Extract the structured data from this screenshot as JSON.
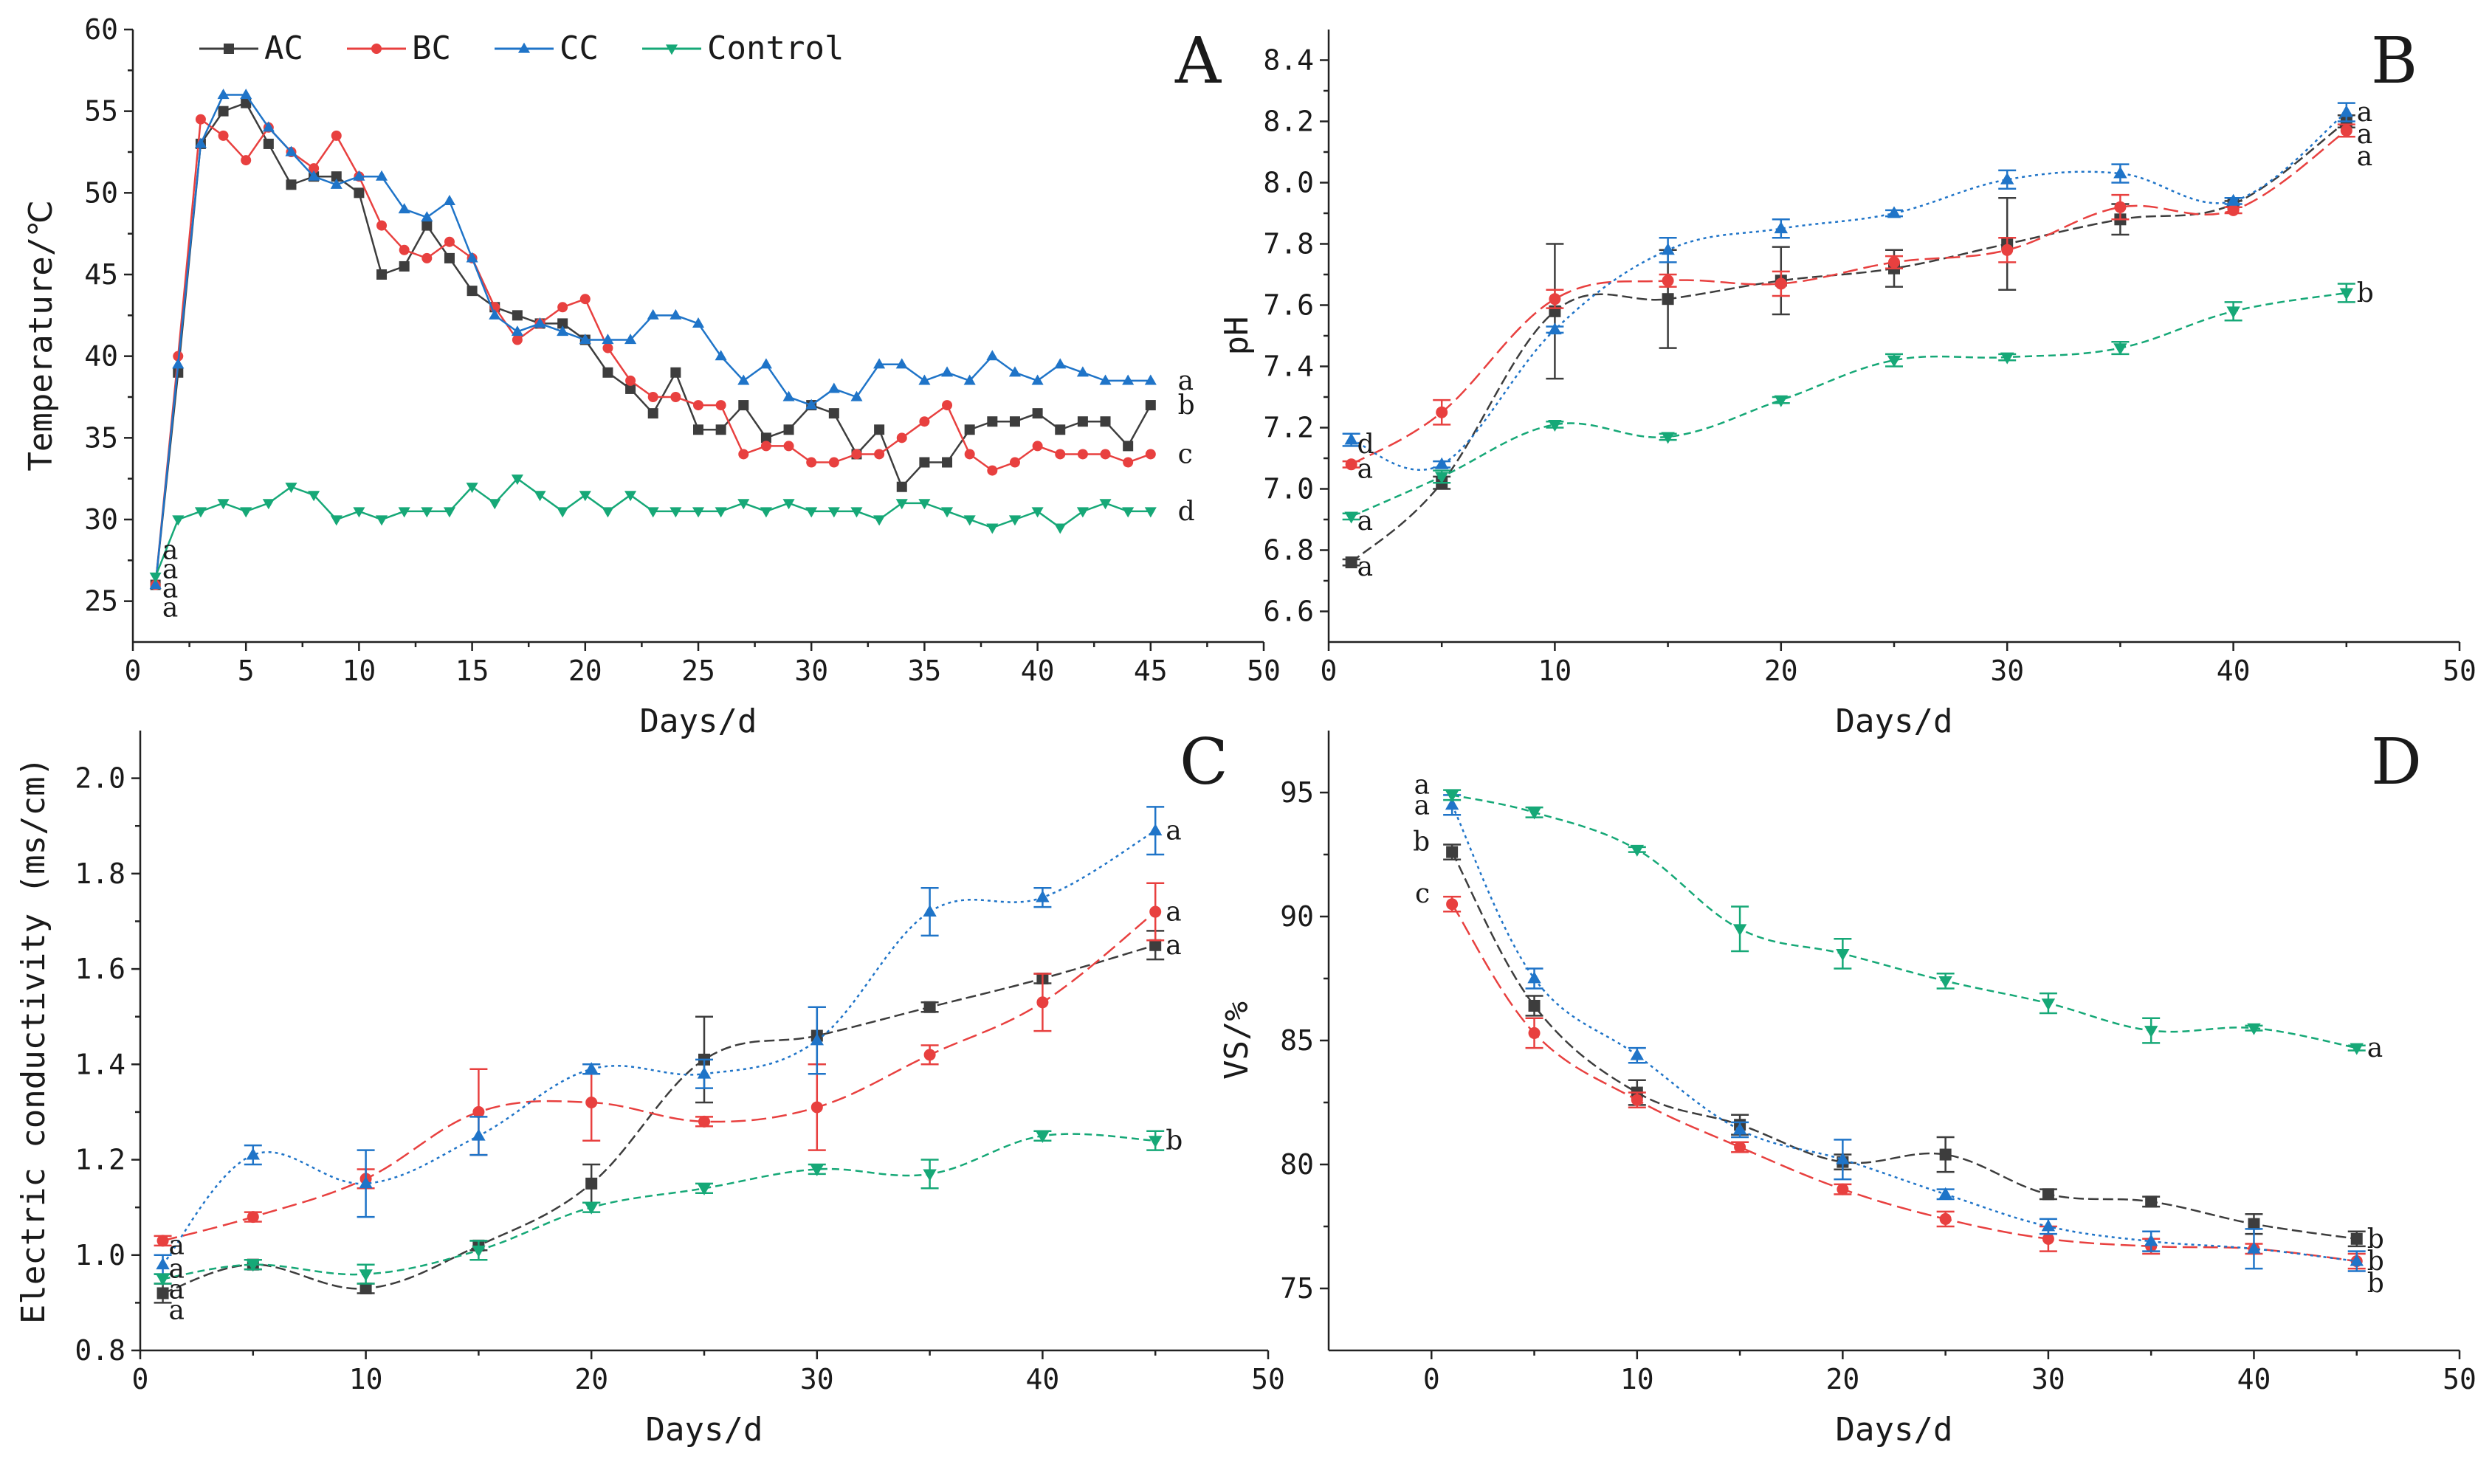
{
  "legend": [
    {
      "name": "AC",
      "color": "#3d3d3d",
      "marker": "square"
    },
    {
      "name": "BC",
      "color": "#e8403f",
      "marker": "circle"
    },
    {
      "name": "CC",
      "color": "#1f74c8",
      "marker": "triangle-up"
    },
    {
      "name": "Control",
      "color": "#16a877",
      "marker": "triangle-down"
    }
  ],
  "chart_data": [
    {
      "panel": "A",
      "type": "line",
      "xlabel": "Days/d",
      "ylabel": "Temperature/℃",
      "xlim": [
        0,
        50
      ],
      "ylim": [
        22.5,
        60
      ],
      "xticks": [
        0,
        5,
        10,
        15,
        20,
        25,
        30,
        35,
        40,
        45,
        50
      ],
      "yticks": [
        25,
        30,
        35,
        40,
        45,
        50,
        55,
        60
      ],
      "series": [
        {
          "name": "AC",
          "x": [
            1,
            2,
            3,
            4,
            5,
            6,
            7,
            8,
            9,
            10,
            11,
            12,
            13,
            14,
            15,
            16,
            17,
            18,
            19,
            20,
            21,
            22,
            23,
            24,
            25,
            26,
            27,
            28,
            29,
            30,
            31,
            32,
            33,
            34,
            35,
            36,
            37,
            38,
            39,
            40,
            41,
            42,
            43,
            44,
            45
          ],
          "values": [
            26,
            39,
            53,
            55,
            55.5,
            53,
            50.5,
            51,
            51,
            50,
            45,
            45.5,
            48,
            46,
            44,
            43,
            42.5,
            42,
            42,
            41,
            39,
            38,
            36.5,
            39,
            35.5,
            35.5,
            37,
            35,
            35.5,
            37,
            36.5,
            34,
            35.5,
            32,
            33.5,
            33.5,
            35.5,
            36,
            36,
            36.5,
            35.5,
            36,
            36,
            34.5,
            37
          ],
          "sig": "b"
        },
        {
          "name": "BC",
          "x": [
            1,
            2,
            3,
            4,
            5,
            6,
            7,
            8,
            9,
            10,
            11,
            12,
            13,
            14,
            15,
            16,
            17,
            18,
            19,
            20,
            21,
            22,
            23,
            24,
            25,
            26,
            27,
            28,
            29,
            30,
            31,
            32,
            33,
            34,
            35,
            36,
            37,
            38,
            39,
            40,
            41,
            42,
            43,
            44,
            45
          ],
          "values": [
            26,
            40,
            54.5,
            53.5,
            52,
            54,
            52.5,
            51.5,
            53.5,
            51,
            48,
            46.5,
            46,
            47,
            46,
            43,
            41,
            42,
            43,
            43.5,
            40.5,
            38.5,
            37.5,
            37.5,
            37,
            37,
            34,
            34.5,
            34.5,
            33.5,
            33.5,
            34,
            34,
            35,
            36,
            37,
            34,
            33,
            33.5,
            34.5,
            34,
            34,
            34,
            33.5,
            34
          ],
          "sig": "c"
        },
        {
          "name": "CC",
          "x": [
            1,
            2,
            3,
            4,
            5,
            6,
            7,
            8,
            9,
            10,
            11,
            12,
            13,
            14,
            15,
            16,
            17,
            18,
            19,
            20,
            21,
            22,
            23,
            24,
            25,
            26,
            27,
            28,
            29,
            30,
            31,
            32,
            33,
            34,
            35,
            36,
            37,
            38,
            39,
            40,
            41,
            42,
            43,
            44,
            45
          ],
          "values": [
            26,
            39.5,
            53,
            56,
            56,
            54,
            52.5,
            51,
            50.5,
            51,
            51,
            49,
            48.5,
            49.5,
            46,
            42.5,
            41.5,
            42,
            41.5,
            41,
            41,
            41,
            42.5,
            42.5,
            42,
            40,
            38.5,
            39.5,
            37.5,
            37,
            38,
            37.5,
            39.5,
            39.5,
            38.5,
            39,
            38.5,
            40,
            39,
            38.5,
            39.5,
            39,
            38.5,
            38.5,
            38.5
          ],
          "sig": "a"
        },
        {
          "name": "Control",
          "x": [
            1,
            2,
            3,
            4,
            5,
            6,
            7,
            8,
            9,
            10,
            11,
            12,
            13,
            14,
            15,
            16,
            17,
            18,
            19,
            20,
            21,
            22,
            23,
            24,
            25,
            26,
            27,
            28,
            29,
            30,
            31,
            32,
            33,
            34,
            35,
            36,
            37,
            38,
            39,
            40,
            41,
            42,
            43,
            44,
            45
          ],
          "values": [
            26.5,
            30,
            30.5,
            31,
            30.5,
            31,
            32,
            31.5,
            30,
            30.5,
            30,
            30.5,
            30.5,
            30.5,
            32,
            31,
            32.5,
            31.5,
            30.5,
            31.5,
            30.5,
            31.5,
            30.5,
            30.5,
            30.5,
            30.5,
            31,
            30.5,
            31,
            30.5,
            30.5,
            30.5,
            30,
            31,
            31,
            30.5,
            30,
            29.5,
            30,
            30.5,
            29.5,
            30.5,
            31,
            30.5,
            30.5
          ],
          "sig": "d"
        }
      ],
      "start_sig": [
        "a",
        "a",
        "a",
        "a"
      ]
    },
    {
      "panel": "B",
      "type": "line",
      "xlabel": "Days/d",
      "ylabel": "pH",
      "xlim": [
        0,
        50
      ],
      "ylim": [
        6.5,
        8.5
      ],
      "xticks": [
        0,
        10,
        20,
        30,
        40,
        50
      ],
      "yticks": [
        6.6,
        6.8,
        7.0,
        7.2,
        7.4,
        7.6,
        7.8,
        8.0,
        8.2,
        8.4
      ],
      "series": [
        {
          "name": "AC",
          "x": [
            1,
            5,
            10,
            15,
            20,
            25,
            30,
            35,
            40,
            45
          ],
          "values": [
            6.76,
            7.02,
            7.58,
            7.62,
            7.68,
            7.72,
            7.8,
            7.88,
            7.93,
            8.2
          ],
          "err": [
            0.01,
            0.02,
            0.22,
            0.16,
            0.11,
            0.06,
            0.15,
            0.05,
            0.01,
            0.02
          ],
          "start_sig": "a",
          "end_sig": "a"
        },
        {
          "name": "BC",
          "x": [
            1,
            5,
            10,
            15,
            20,
            25,
            30,
            35,
            40,
            45
          ],
          "values": [
            7.08,
            7.25,
            7.62,
            7.68,
            7.67,
            7.74,
            7.78,
            7.92,
            7.91,
            8.17
          ],
          "err": [
            0.01,
            0.04,
            0.03,
            0.02,
            0.04,
            0.02,
            0.04,
            0.04,
            0.01,
            0.02
          ],
          "start_sig": "a",
          "end_sig": "a"
        },
        {
          "name": "CC",
          "x": [
            1,
            5,
            10,
            15,
            20,
            25,
            30,
            35,
            40,
            45
          ],
          "values": [
            7.16,
            7.08,
            7.52,
            7.78,
            7.85,
            7.9,
            8.01,
            8.03,
            7.94,
            8.23
          ],
          "err": [
            0.02,
            0.01,
            0.01,
            0.04,
            0.03,
            0.01,
            0.03,
            0.03,
            0.01,
            0.03
          ],
          "start_sig": "d",
          "end_sig": "a"
        },
        {
          "name": "Control",
          "x": [
            1,
            5,
            10,
            15,
            20,
            25,
            30,
            35,
            40,
            45
          ],
          "values": [
            6.91,
            7.04,
            7.21,
            7.17,
            7.29,
            7.42,
            7.43,
            7.46,
            7.58,
            7.64
          ],
          "err": [
            0.01,
            0.02,
            0.01,
            0.01,
            0.01,
            0.02,
            0.01,
            0.02,
            0.03,
            0.03
          ],
          "start_sig": "a",
          "end_sig": "b"
        }
      ]
    },
    {
      "panel": "C",
      "type": "line",
      "xlabel": "Days/d",
      "ylabel": "Electric conductivity (ms/cm)",
      "xlim": [
        0,
        50
      ],
      "ylim": [
        0.8,
        2.1
      ],
      "xticks": [
        0,
        10,
        20,
        30,
        40,
        50
      ],
      "yticks": [
        0.8,
        1.0,
        1.2,
        1.4,
        1.6,
        1.8,
        2.0
      ],
      "series": [
        {
          "name": "AC",
          "x": [
            1,
            5,
            10,
            15,
            20,
            25,
            30,
            35,
            40,
            45
          ],
          "values": [
            0.92,
            0.98,
            0.93,
            1.02,
            1.15,
            1.41,
            1.46,
            1.52,
            1.58,
            1.65
          ],
          "err": [
            0.02,
            0.01,
            0.01,
            0.01,
            0.04,
            0.09,
            0.06,
            0.01,
            0.01,
            0.03
          ],
          "start_sig": "a",
          "end_sig": "a"
        },
        {
          "name": "BC",
          "x": [
            1,
            5,
            10,
            15,
            20,
            25,
            30,
            35,
            40,
            45
          ],
          "values": [
            1.03,
            1.08,
            1.16,
            1.3,
            1.32,
            1.28,
            1.31,
            1.42,
            1.53,
            1.72
          ],
          "err": [
            0.01,
            0.01,
            0.02,
            0.09,
            0.08,
            0.01,
            0.09,
            0.02,
            0.06,
            0.06
          ],
          "start_sig": "a",
          "end_sig": "a"
        },
        {
          "name": "CC",
          "x": [
            1,
            5,
            10,
            15,
            20,
            25,
            30,
            35,
            40,
            45
          ],
          "values": [
            0.98,
            1.21,
            1.15,
            1.25,
            1.39,
            1.38,
            1.45,
            1.72,
            1.75,
            1.89
          ],
          "err": [
            0.02,
            0.02,
            0.07,
            0.04,
            0.01,
            0.03,
            0.07,
            0.05,
            0.02,
            0.05
          ],
          "start_sig": "a",
          "end_sig": "a"
        },
        {
          "name": "Control",
          "x": [
            1,
            5,
            10,
            15,
            20,
            25,
            30,
            35,
            40,
            45
          ],
          "values": [
            0.95,
            0.98,
            0.96,
            1.01,
            1.1,
            1.14,
            1.18,
            1.17,
            1.25,
            1.24
          ],
          "err": [
            0.01,
            0.01,
            0.02,
            0.02,
            0.01,
            0.01,
            0.01,
            0.03,
            0.01,
            0.02
          ],
          "start_sig": "a",
          "end_sig": "b"
        }
      ]
    },
    {
      "panel": "D",
      "type": "line",
      "xlabel": "Days/d",
      "ylabel": "VS/%",
      "xlim": [
        -5,
        50
      ],
      "ylim": [
        72.5,
        97.5
      ],
      "xticks": [
        0,
        10,
        20,
        30,
        40,
        50
      ],
      "yticks": [
        75,
        80,
        85,
        90,
        95
      ],
      "series": [
        {
          "name": "AC",
          "x": [
            1,
            5,
            10,
            15,
            20,
            25,
            30,
            35,
            40,
            45
          ],
          "values": [
            92.6,
            86.4,
            82.9,
            81.6,
            80.1,
            80.4,
            78.8,
            78.5,
            77.6,
            77.0
          ],
          "err": [
            0.3,
            0.4,
            0.5,
            0.4,
            0.3,
            0.7,
            0.2,
            0.2,
            0.4,
            0.3
          ],
          "start_sig": "b",
          "end_sig": "b"
        },
        {
          "name": "BC",
          "x": [
            1,
            5,
            10,
            15,
            20,
            25,
            30,
            35,
            40,
            45
          ],
          "values": [
            90.5,
            85.3,
            82.6,
            80.7,
            79.0,
            77.8,
            77.0,
            76.7,
            76.6,
            76.1
          ],
          "err": [
            0.3,
            0.6,
            0.3,
            0.2,
            0.2,
            0.3,
            0.5,
            0.3,
            0.2,
            0.3
          ],
          "start_sig": "c",
          "end_sig": "b"
        },
        {
          "name": "CC",
          "x": [
            1,
            5,
            10,
            15,
            20,
            25,
            30,
            35,
            40,
            45
          ],
          "values": [
            94.5,
            87.5,
            84.4,
            81.4,
            80.2,
            78.8,
            77.5,
            76.9,
            76.6,
            76.1
          ],
          "err": [
            0.4,
            0.4,
            0.3,
            0.3,
            0.8,
            0.2,
            0.3,
            0.4,
            0.8,
            0.4
          ],
          "start_sig": "a",
          "end_sig": "b"
        },
        {
          "name": "Control",
          "x": [
            1,
            5,
            10,
            15,
            20,
            25,
            30,
            35,
            40,
            45
          ],
          "values": [
            94.9,
            94.2,
            92.7,
            89.5,
            88.5,
            87.4,
            86.5,
            85.4,
            85.5,
            84.7
          ],
          "err": [
            0.2,
            0.2,
            0.1,
            0.9,
            0.6,
            0.3,
            0.4,
            0.5,
            0.1,
            0.1
          ],
          "start_sig": "a",
          "end_sig": "a"
        }
      ]
    }
  ]
}
